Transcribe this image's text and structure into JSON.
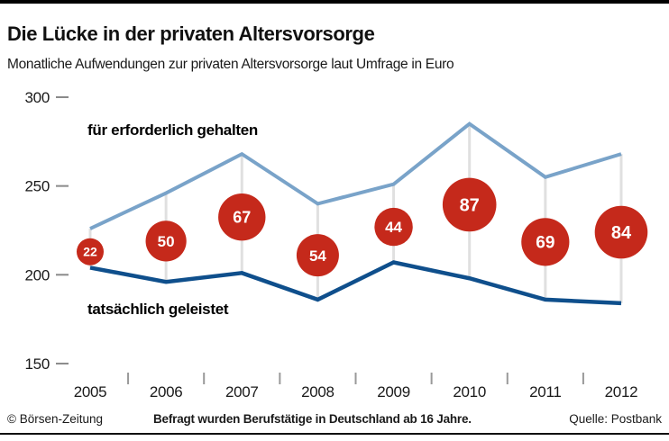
{
  "chart_data": {
    "type": "line",
    "title": "Die Lücke in der privaten Altersvorsorge",
    "subtitle": "Monatliche Aufwendungen zur privaten Altersvorsorge laut Umfrage in Euro",
    "x": [
      2005,
      2006,
      2007,
      2008,
      2009,
      2010,
      2011,
      2012
    ],
    "series": [
      {
        "name": "für erforderlich gehalten",
        "color": "#79a3c9",
        "label_color": "#5f94c0",
        "values": [
          226,
          246,
          268,
          240,
          251,
          285,
          255,
          268
        ]
      },
      {
        "name": "tatsächlich geleistet",
        "color": "#0f4f8c",
        "label_color": "#0f4f8c",
        "values": [
          204,
          196,
          201,
          186,
          207,
          198,
          186,
          184
        ]
      }
    ],
    "gap_circles": {
      "color": "#c5291b",
      "text_color": "#ffffff",
      "values": [
        22,
        50,
        67,
        54,
        44,
        87,
        69,
        84
      ]
    },
    "ylim": [
      150,
      300
    ],
    "yticks": [
      300,
      250,
      200,
      150
    ],
    "grid": "vertical-connector-between-series",
    "legend_position": "inline-annotations"
  },
  "footer": {
    "left": "© Börsen-Zeitung",
    "center": "Befragt wurden Berufstätige in Deutschland ab 16 Jahre.",
    "right": "Quelle: Postbank"
  },
  "colors": {
    "grid": "#e0e0e0",
    "tick": "#8a8a8a",
    "separator": "#999999",
    "axis_text": "#1a1a1a",
    "topbar": "#000000",
    "bottom_rule": "#111111"
  }
}
